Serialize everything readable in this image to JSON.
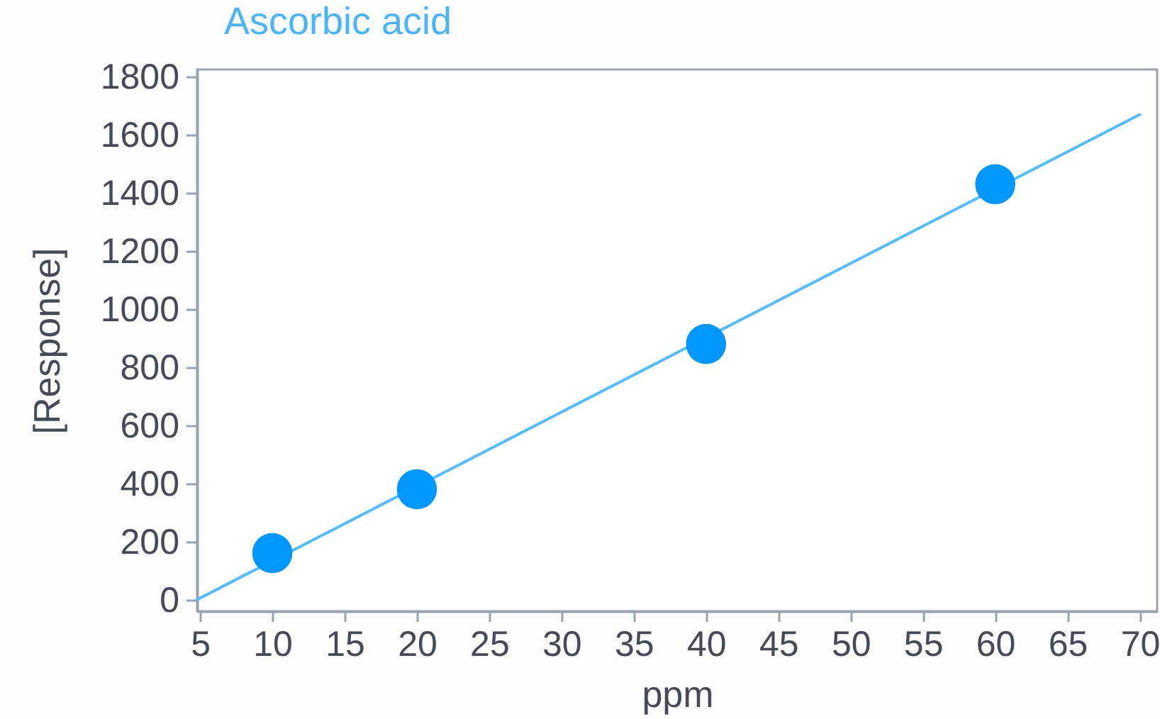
{
  "chart_data": {
    "type": "scatter",
    "title": "Ascorbic acid",
    "xlabel": "ppm",
    "ylabel": "[Response]",
    "x": [
      10,
      20,
      40,
      60
    ],
    "series": [
      {
        "color": "#0096ff",
        "values": [
          160,
          380,
          880,
          1430
        ],
        "marker": "circle"
      },
      {
        "type": "line",
        "color": "#55bbff",
        "x": [
          4.8,
          70
        ],
        "values": [
          0,
          1670
        ],
        "marker": "none"
      }
    ],
    "xlim": [
      4.8,
      71.2
    ],
    "ylim": [
      -40,
      1825
    ],
    "xticks": [
      5,
      10,
      15,
      20,
      25,
      30,
      35,
      40,
      45,
      50,
      55,
      60,
      65,
      70
    ],
    "yticks": [
      0,
      200,
      400,
      600,
      800,
      1000,
      1200,
      1400,
      1600,
      1800
    ],
    "grid": false
  }
}
